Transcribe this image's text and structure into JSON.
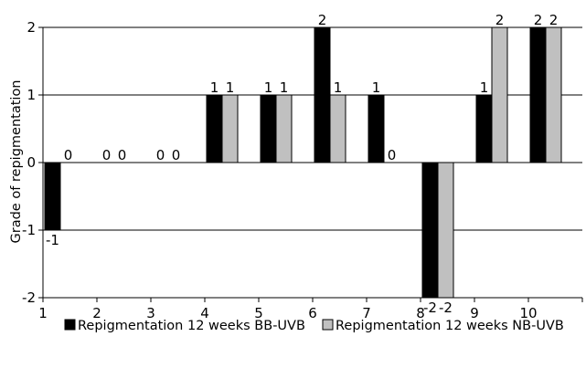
{
  "chart_data": {
    "type": "bar",
    "categories": [
      "1",
      "2",
      "3",
      "4",
      "5",
      "6",
      "7",
      "8",
      "9",
      "10"
    ],
    "series": [
      {
        "name": "Repigmentation 12 weeks BB-UVB",
        "values": [
          -1,
          0,
          0,
          1,
          1,
          2,
          1,
          -2,
          1,
          2
        ],
        "color": "#000000"
      },
      {
        "name": "Repigmentation 12 weeks NB-UVB",
        "values": [
          0,
          0,
          0,
          1,
          1,
          1,
          0,
          -2,
          2,
          2
        ],
        "color": "#c0c0c0"
      }
    ],
    "ylabel": "Grade of repigmentation",
    "ylim": [
      -2,
      2
    ],
    "yticks": [
      "-2",
      "-1",
      "0",
      "1",
      "2"
    ],
    "grid": true,
    "legend_position": "bottom"
  }
}
